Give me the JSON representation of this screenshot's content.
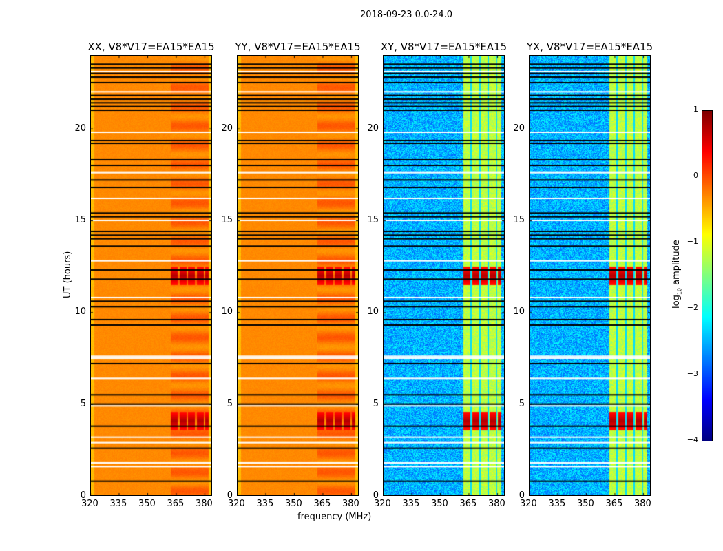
{
  "chart_data": {
    "type": "heatmap",
    "title": "2018-09-23 0.0-24.0",
    "xlabel": "frequency (MHz)",
    "ylabel": "UT (hours)",
    "xlim": [
      320,
      384
    ],
    "ylim": [
      0,
      24
    ],
    "xticks": [
      "320",
      "335",
      "350",
      "365",
      "380"
    ],
    "yticks": [
      "0",
      "5",
      "10",
      "15",
      "20"
    ],
    "panels": [
      {
        "title": "XX, V8*V17=EA15*EA15",
        "pol": "parallel"
      },
      {
        "title": "YY, V8*V17=EA15*EA15",
        "pol": "parallel"
      },
      {
        "title": "XY, V8*V17=EA15*EA15",
        "pol": "cross"
      },
      {
        "title": "YX, V8*V17=EA15*EA15",
        "pol": "cross"
      }
    ],
    "colorbar": {
      "label_prefix": "log",
      "label_sub": "10",
      "label_suffix": " amplitude",
      "range": [
        -4,
        1
      ],
      "ticks": [
        "1",
        "0",
        "−1",
        "−2",
        "−3",
        "−4"
      ],
      "colormap": "jet"
    },
    "flagged_black_hours": [
      0.8,
      2.6,
      3.8,
      5.0,
      5.5,
      7.2,
      9.3,
      9.6,
      10.3,
      10.6,
      11.8,
      12.3,
      13.6,
      14.0,
      14.2,
      14.4,
      15.2,
      15.4,
      16.8,
      17.2,
      18.0,
      18.3,
      19.2,
      19.35,
      21.0,
      21.2,
      21.4,
      21.6,
      21.8,
      22.5,
      22.8,
      23.0,
      23.3,
      23.5
    ],
    "flagged_white_hours": [
      1.6,
      1.8,
      2.9,
      3.2,
      4.9,
      6.4,
      7.5,
      7.6,
      10.8,
      12.8,
      15.0,
      16.2,
      17.6,
      19.8,
      22.0,
      23.1
    ],
    "parallel_level": -0.3,
    "cross_level": -2.5,
    "band_mhz": [
      362,
      382
    ],
    "bright_events_hours": [
      4.1,
      12.0
    ]
  }
}
